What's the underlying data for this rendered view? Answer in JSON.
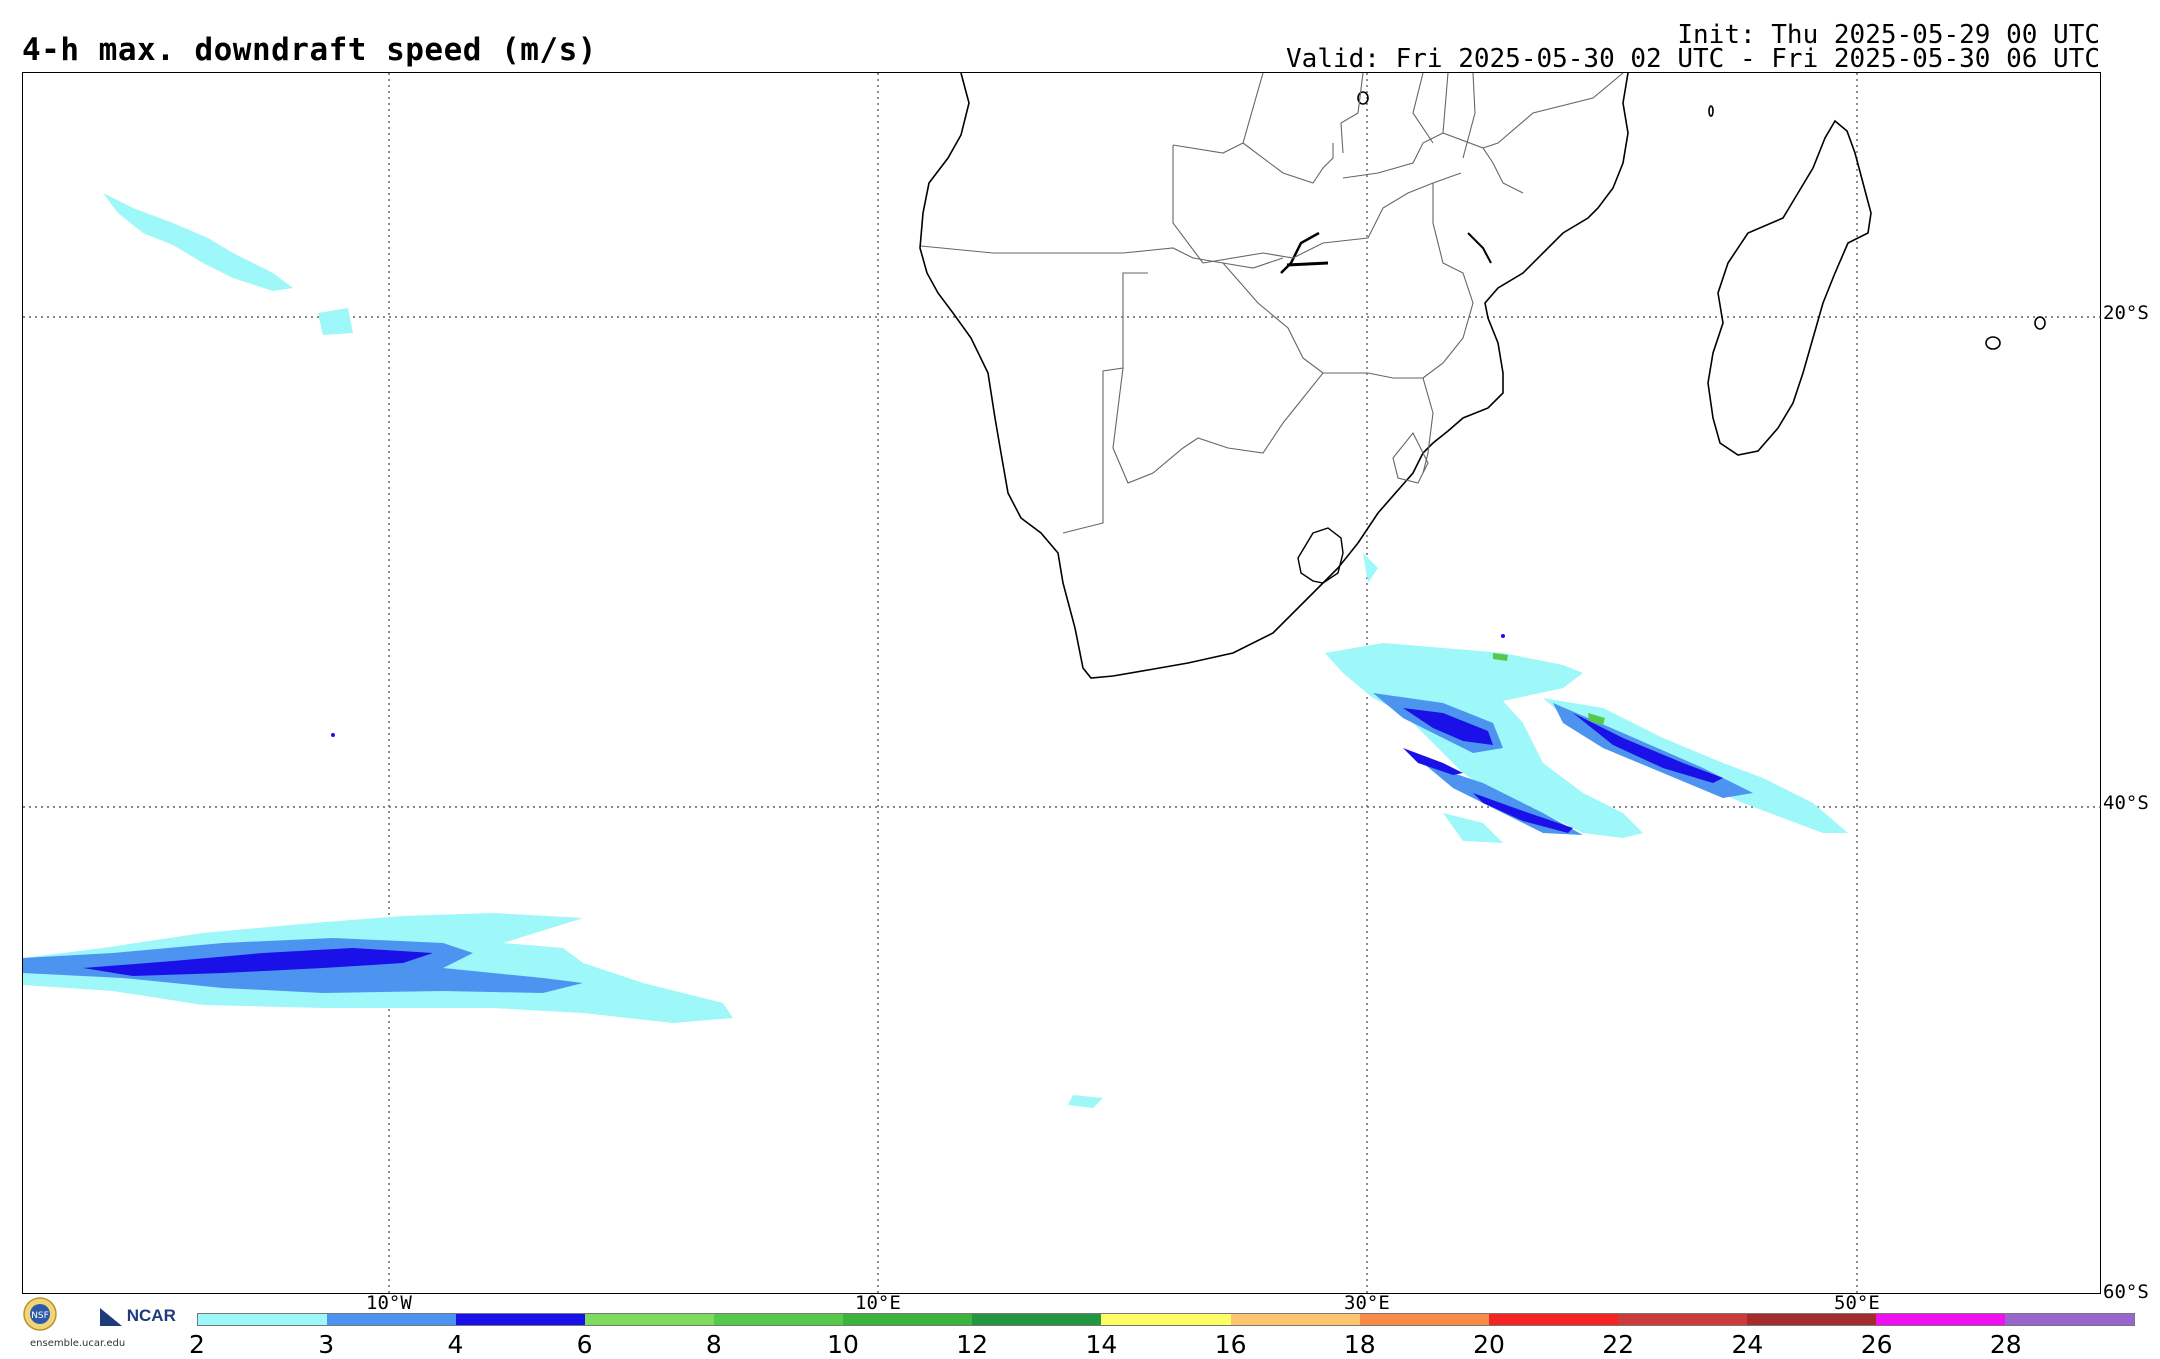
{
  "header": {
    "title": "4-h max. downdraft speed (m/s)",
    "init": "Init: Thu 2025-05-29 00 UTC",
    "valid": "Valid: Fri 2025-05-30 02 UTC - Fri 2025-05-30 06 UTC"
  },
  "map": {
    "lat_labels": [
      "20°S",
      "40°S",
      "60°S"
    ],
    "lon_labels": [
      "10°W",
      "10°E",
      "30°E",
      "50°E"
    ]
  },
  "colorbar": {
    "ticks": [
      "2",
      "3",
      "4",
      "6",
      "8",
      "10",
      "12",
      "14",
      "16",
      "18",
      "20",
      "22",
      "24",
      "26",
      "28"
    ],
    "colors": [
      "#9ef7f8",
      "#4c94f0",
      "#1a10e8",
      "#7ddc5c",
      "#56c94a",
      "#3ab43a",
      "#229640",
      "#fdfd66",
      "#fcc670",
      "#f98a48",
      "#f42424",
      "#cc3a3a",
      "#a42c2c",
      "#ee10ee",
      "#9865cf"
    ]
  },
  "logo": {
    "org": "NCAR",
    "url": "ensemble.ucar.edu"
  }
}
